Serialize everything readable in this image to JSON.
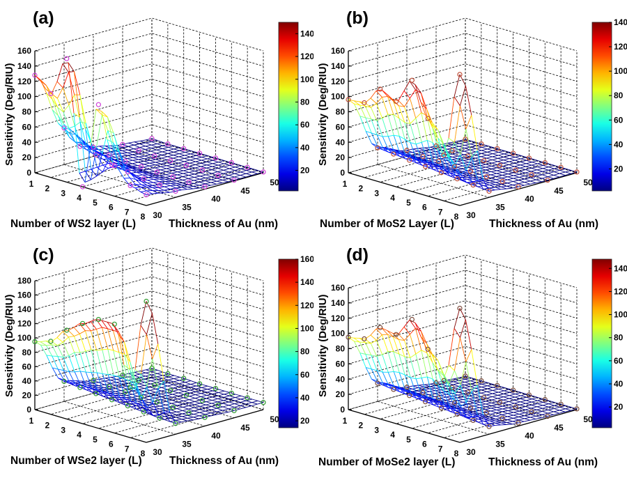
{
  "chart_data": [
    {
      "type": "surface3d",
      "panel_label": "(a)",
      "material": "WS2",
      "xlabel": "Number of WS2 layer (L)",
      "ylabel": "Thickness of Au (nm)",
      "zlabel": "Sensitivity (Deg/RIU)",
      "x_ticks": [
        1,
        2,
        3,
        4,
        5,
        6,
        7,
        8
      ],
      "y_ticks": [
        30,
        35,
        40,
        45,
        50
      ],
      "z_ticks": [
        0,
        20,
        40,
        60,
        80,
        100,
        120,
        140,
        160
      ],
      "zlim": [
        0,
        160
      ],
      "colorbar": {
        "range": [
          2,
          150
        ],
        "ticks": [
          20,
          40,
          60,
          80,
          100,
          120,
          140
        ]
      },
      "marker_color": "#d040d8",
      "x": [
        1,
        2,
        3,
        4,
        5,
        6,
        7,
        8
      ],
      "y": [
        30,
        35,
        40,
        45,
        50
      ],
      "z": [
        [
          128,
          48,
          12,
          5,
          2
        ],
        [
          110,
          30,
          8,
          3,
          1
        ],
        [
          162,
          25,
          6,
          2,
          1
        ],
        [
          0,
          18,
          5,
          2,
          1
        ],
        [
          114,
          15,
          4,
          2,
          1
        ],
        [
          40,
          12,
          4,
          2,
          1
        ],
        [
          20,
          10,
          3,
          1,
          1
        ],
        [
          14,
          8,
          3,
          1,
          1
        ]
      ]
    },
    {
      "type": "surface3d",
      "panel_label": "(b)",
      "material": "MoS2",
      "xlabel": "Number of MoS2 Layer (L)",
      "ylabel": "Thickness of Au (nm)",
      "zlabel": "Sensitivity (Deg/RIU)",
      "x_ticks": [
        1,
        2,
        3,
        4,
        5,
        6,
        7,
        8
      ],
      "y_ticks": [
        30,
        35,
        40,
        45,
        50
      ],
      "z_ticks": [
        0,
        20,
        40,
        60,
        80,
        100,
        120,
        140,
        160
      ],
      "zlim": [
        0,
        160
      ],
      "colorbar": {
        "range": [
          2,
          140
        ],
        "ticks": [
          20,
          40,
          60,
          80,
          100,
          120,
          140
        ]
      },
      "marker_color": "#c0503a",
      "x": [
        1,
        2,
        3,
        4,
        5,
        6,
        7,
        8
      ],
      "y": [
        30,
        35,
        40,
        45,
        50
      ],
      "z": [
        [
          96,
          22,
          8,
          3,
          1
        ],
        [
          98,
          20,
          6,
          3,
          1
        ],
        [
          122,
          18,
          6,
          2,
          1
        ],
        [
          112,
          16,
          5,
          2,
          1
        ],
        [
          146,
          14,
          5,
          2,
          1
        ],
        [
          102,
          12,
          4,
          2,
          1
        ],
        [
          60,
          10,
          4,
          2,
          1
        ],
        [
          172,
          8,
          3,
          1,
          1
        ]
      ]
    },
    {
      "type": "surface3d",
      "panel_label": "(c)",
      "material": "WSe2",
      "xlabel": "Number of WSe2 layer (L)",
      "ylabel": "Thickness of Au (nm)",
      "zlabel": "Sensitivity (Deg/RIU)",
      "x_ticks": [
        1,
        2,
        3,
        4,
        5,
        6,
        7,
        8
      ],
      "y_ticks": [
        30,
        35,
        40,
        45,
        50
      ],
      "z_ticks": [
        0,
        20,
        40,
        60,
        80,
        100,
        120,
        140,
        160,
        180
      ],
      "zlim": [
        0,
        180
      ],
      "colorbar": {
        "range": [
          14,
          160
        ],
        "ticks": [
          20,
          40,
          60,
          80,
          100,
          120,
          140,
          160
        ]
      },
      "marker_color": "#2e9a2e",
      "x": [
        1,
        2,
        3,
        4,
        5,
        6,
        7,
        8
      ],
      "y": [
        30,
        35,
        40,
        45,
        50
      ],
      "z": [
        [
          95,
          28,
          18,
          14,
          12
        ],
        [
          102,
          26,
          16,
          13,
          11
        ],
        [
          124,
          24,
          15,
          13,
          11
        ],
        [
          140,
          22,
          14,
          12,
          10
        ],
        [
          152,
          20,
          14,
          12,
          10
        ],
        [
          152,
          18,
          13,
          11,
          10
        ],
        [
          70,
          16,
          12,
          11,
          10
        ],
        [
          197,
          15,
          12,
          10,
          10
        ]
      ]
    },
    {
      "type": "surface3d",
      "panel_label": "(d)",
      "material": "MoSe2",
      "xlabel": "Number of MoSe2 layer (L)",
      "ylabel": "Thickness of Au (nm)",
      "zlabel": "Sensitivity (Deg/RIU)",
      "x_ticks": [
        1,
        2,
        3,
        4,
        5,
        6,
        7,
        8
      ],
      "y_ticks": [
        30,
        35,
        40,
        45,
        50
      ],
      "z_ticks": [
        0,
        20,
        40,
        60,
        80,
        100,
        120,
        140,
        160
      ],
      "zlim": [
        0,
        160
      ],
      "colorbar": {
        "range": [
          2,
          148
        ],
        "ticks": [
          20,
          40,
          60,
          80,
          100,
          120,
          140
        ]
      },
      "marker_color": "#7a4a3a",
      "x": [
        1,
        2,
        3,
        4,
        5,
        6,
        7,
        8
      ],
      "y": [
        30,
        35,
        40,
        45,
        50
      ],
      "z": [
        [
          95,
          24,
          8,
          3,
          1
        ],
        [
          99,
          22,
          7,
          3,
          1
        ],
        [
          120,
          20,
          6,
          3,
          1
        ],
        [
          117,
          18,
          6,
          2,
          1
        ],
        [
          143,
          16,
          5,
          2,
          1
        ],
        [
          110,
          14,
          5,
          2,
          1
        ],
        [
          75,
          12,
          4,
          2,
          1
        ],
        [
          176,
          10,
          4,
          2,
          1
        ]
      ]
    }
  ]
}
